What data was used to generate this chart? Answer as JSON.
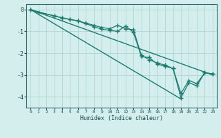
{
  "xlabel": "Humidex (Indice chaleur)",
  "ylabel": "",
  "background_color": "#d4eeee",
  "grid_color": "#b0d4d4",
  "line_color": "#1a7a6e",
  "xlim": [
    -0.5,
    23.5
  ],
  "ylim": [
    -4.5,
    0.25
  ],
  "yticks": [
    0,
    -1,
    -2,
    -3,
    -4
  ],
  "xticks": [
    0,
    1,
    2,
    3,
    4,
    5,
    6,
    7,
    8,
    9,
    10,
    11,
    12,
    13,
    14,
    15,
    16,
    17,
    18,
    19,
    20,
    21,
    22,
    23
  ],
  "lines": [
    {
      "x": [
        0,
        1,
        3,
        4,
        5,
        6,
        7,
        8,
        9,
        10,
        11,
        12,
        13,
        14,
        15,
        16,
        17,
        18,
        19,
        20,
        21,
        22,
        23
      ],
      "y": [
        0.0,
        -0.12,
        -0.28,
        -0.38,
        -0.45,
        -0.52,
        -0.62,
        -0.72,
        -0.82,
        -0.88,
        -0.72,
        -0.88,
        -0.92,
        -2.1,
        -2.3,
        -2.45,
        -2.55,
        -2.7,
        -3.85,
        -3.25,
        -3.4,
        -2.9,
        -2.95
      ],
      "marker": "+",
      "markersize": 4,
      "lw": 0.9
    },
    {
      "x": [
        0,
        3,
        4,
        5,
        6,
        7,
        8,
        9,
        10,
        11,
        12,
        13,
        14,
        15,
        16,
        17,
        18,
        19,
        20,
        21,
        22,
        23
      ],
      "y": [
        0.0,
        -0.3,
        -0.38,
        -0.45,
        -0.52,
        -0.65,
        -0.78,
        -0.9,
        -0.95,
        -1.0,
        -0.75,
        -1.05,
        -2.15,
        -2.2,
        -2.5,
        -2.6,
        -2.7,
        -4.05,
        -3.35,
        -3.5,
        -2.9,
        -2.95
      ],
      "marker": "+",
      "markersize": 4,
      "lw": 0.9
    },
    {
      "x": [
        0,
        23
      ],
      "y": [
        0.0,
        -3.0
      ],
      "marker": null,
      "markersize": 0,
      "lw": 1.0
    },
    {
      "x": [
        0,
        19
      ],
      "y": [
        0.0,
        -4.1
      ],
      "marker": null,
      "markersize": 0,
      "lw": 1.0
    }
  ]
}
